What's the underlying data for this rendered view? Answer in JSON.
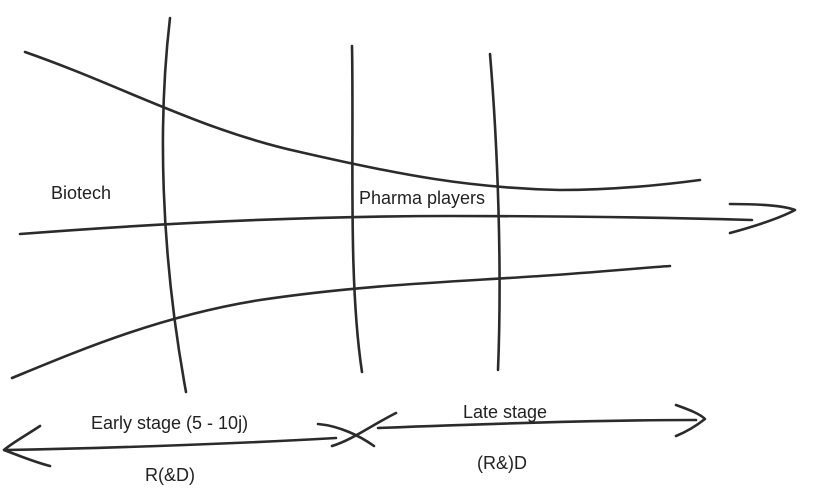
{
  "labels": {
    "biotech": "Biotech",
    "pharma_players": "Pharma players",
    "early_stage": "Early stage (5 - 10j)",
    "late_stage": "Late stage",
    "early_rd": "R(&D)",
    "late_rd": "(R&)D"
  },
  "colors": {
    "ink": "#2b2b2b"
  }
}
